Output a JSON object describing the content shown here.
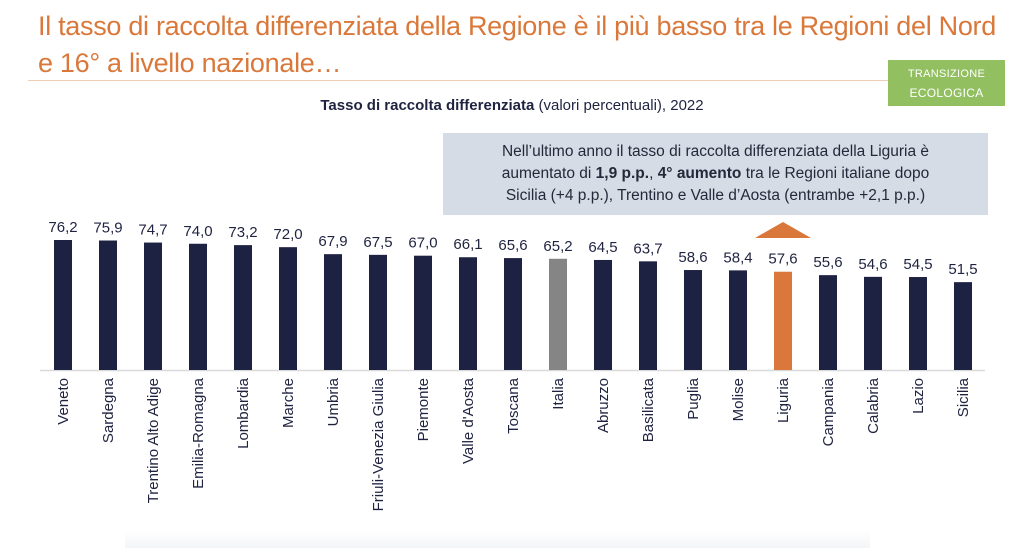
{
  "header": {
    "title": "Il tasso di raccolta differenziata della Regione è il più basso tra le Regioni del Nord e 16° a livello nazionale…",
    "badge_line1": "Transizione",
    "badge_line2": "ecologica"
  },
  "note": {
    "line1": "Nell’ultimo anno il tasso di raccolta differenziata della Liguria è",
    "line2_pre": "aumentato di ",
    "line2_bold1": "1,9 p.p.",
    "line2_sep": ", ",
    "line2_bold2": "4° aumento",
    "line2_post": " tra le Regioni italiane dopo",
    "line3": "Sicilia (+4 p.p.), Trentino e Valle d’Aosta (entrambe +2,1 p.p.)"
  },
  "colors": {
    "title": "#d9783a",
    "bar": "#1e2242",
    "italia": "#858585",
    "liguria": "#d9783a",
    "badge": "#92c060",
    "note_bg": "#d6dce5"
  },
  "chart_data": {
    "type": "bar",
    "title_bold": "Tasso di raccolta differenziata",
    "title_rest": " (valori percentuali), 2022",
    "categories": [
      "Veneto",
      "Sardegna",
      "Trentino Alto Adige",
      "Emilia-Romagna",
      "Lombardia",
      "Marche",
      "Umbria",
      "Friuli-Venezia Giulia",
      "Piemonte",
      "Valle d'Aosta",
      "Toscana",
      "Italia",
      "Abruzzo",
      "Basilicata",
      "Puglia",
      "Molise",
      "Liguria",
      "Campania",
      "Calabria",
      "Lazio",
      "Sicilia"
    ],
    "values": [
      76.2,
      75.9,
      74.7,
      74.0,
      73.2,
      72.0,
      67.9,
      67.5,
      67.0,
      66.1,
      65.6,
      65.2,
      64.5,
      63.7,
      58.6,
      58.4,
      57.6,
      55.6,
      54.6,
      54.5,
      51.5
    ],
    "value_labels": [
      "76,2",
      "75,9",
      "74,7",
      "74,0",
      "73,2",
      "72,0",
      "67,9",
      "67,5",
      "67,0",
      "66,1",
      "65,6",
      "65,2",
      "64,5",
      "63,7",
      "58,6",
      "58,4",
      "57,6",
      "55,6",
      "54,6",
      "54,5",
      "51,5"
    ],
    "highlight": {
      "Italia": "italia",
      "Liguria": "liguria"
    },
    "ylim": [
      0,
      80
    ],
    "grid": false,
    "legend": "none",
    "annotation_arrow": "up-triangle above Liguria"
  }
}
